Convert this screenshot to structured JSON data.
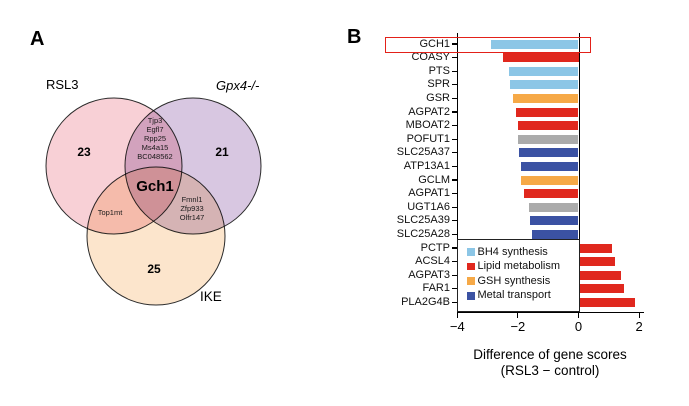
{
  "panelA": {
    "label": "A",
    "sets": [
      {
        "name": "RSL3",
        "count": "23"
      },
      {
        "name": "Gpx4-/-",
        "count": "21"
      },
      {
        "name": "IKE",
        "count": "25"
      }
    ],
    "intersections": {
      "rsl3_gpx4": [
        "Tjp3",
        "Egfl7",
        "Rpp25",
        "Ms4a15",
        "BC048562"
      ],
      "rsl3_ike": [
        "Top1mt"
      ],
      "gpx4_ike": [
        "Fmnl1",
        "Zfp933",
        "Olfr147"
      ],
      "center": "Gch1"
    },
    "colors": {
      "rsl3": "#F8D0D6",
      "gpx4": "#D8C7E1",
      "ike": "#FCE5CC"
    }
  },
  "panelB": {
    "label": "B"
  },
  "chart_data": {
    "type": "bar",
    "orientation": "horizontal",
    "categories": [
      "GCH1",
      "COASY",
      "PTS",
      "SPR",
      "GSR",
      "AGPAT2",
      "MBOAT2",
      "POFUT1",
      "SLC25A37",
      "ATP13A1",
      "GCLM",
      "AGPAT1",
      "UGT1A6",
      "SLC25A39",
      "SLC25A28",
      "PCTP",
      "ACSL4",
      "AGPAT3",
      "FAR1",
      "PLA2G4B"
    ],
    "values": [
      -2.9,
      -2.5,
      -2.3,
      -2.25,
      -2.15,
      -2.05,
      -2.0,
      -2.0,
      -1.95,
      -1.9,
      -1.9,
      -1.8,
      -1.65,
      -1.6,
      -1.55,
      1.1,
      1.2,
      1.4,
      1.5,
      1.85
    ],
    "groups": [
      "bh4",
      "lipid",
      "bh4",
      "bh4",
      "gsh",
      "lipid",
      "lipid",
      "other",
      "metal",
      "metal",
      "gsh",
      "lipid",
      "other",
      "metal",
      "metal",
      "lipid",
      "lipid",
      "lipid",
      "lipid",
      "lipid"
    ],
    "group_colors": {
      "bh4": "#8CC6E6",
      "lipid": "#E0281E",
      "gsh": "#F6A947",
      "metal": "#3B52A3",
      "other": "#ABABAB"
    },
    "legend": [
      {
        "label": "BH4 synthesis",
        "group": "bh4"
      },
      {
        "label": "Lipid metabolism",
        "group": "lipid"
      },
      {
        "label": "GSH synthesis",
        "group": "gsh"
      },
      {
        "label": "Metal transport",
        "group": "metal"
      }
    ],
    "x_ticks": [
      -4,
      -2,
      0,
      2
    ],
    "xlim": [
      -4,
      2.15
    ],
    "xlabel_line1": "Difference of gene scores",
    "xlabel_line2": "(RSL3 − control)",
    "grid": false,
    "legend_position": "inside-bottom-left-boxed",
    "highlighted_category": "GCH1",
    "highlight_color": "#E32119"
  }
}
